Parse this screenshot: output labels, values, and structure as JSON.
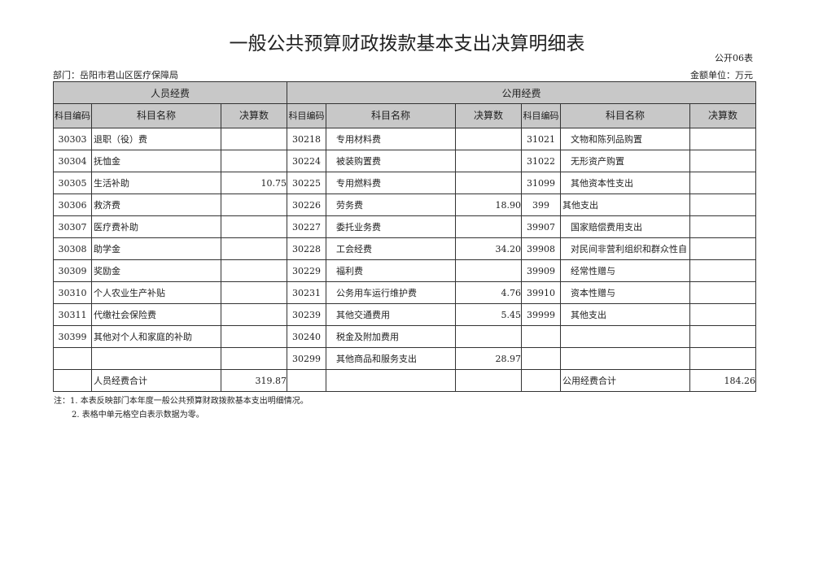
{
  "title": "一般公共预算财政拨款基本支出决算明细表",
  "form_no": "公开06表",
  "department": "部门：岳阳市君山区医疗保障局",
  "unit": "金额单位：万元",
  "groups": {
    "personnel": "人员经费",
    "public": "公用经费"
  },
  "headers": {
    "code": "科目编码",
    "name": "科目名称",
    "amount": "决算数"
  },
  "rows": [
    {
      "a": [
        "30303",
        "退职（役）费",
        ""
      ],
      "b": [
        "30218",
        "专用材料费",
        ""
      ],
      "c": [
        "31021",
        "文物和陈列品购置",
        ""
      ]
    },
    {
      "a": [
        "30304",
        "抚恤金",
        ""
      ],
      "b": [
        "30224",
        "被装购置费",
        ""
      ],
      "c": [
        "31022",
        "无形资产购置",
        ""
      ]
    },
    {
      "a": [
        "30305",
        "生活补助",
        "10.75"
      ],
      "b": [
        "30225",
        "专用燃料费",
        ""
      ],
      "c": [
        "31099",
        "其他资本性支出",
        ""
      ]
    },
    {
      "a": [
        "30306",
        "救济费",
        ""
      ],
      "b": [
        "30226",
        "劳务费",
        "18.90"
      ],
      "c": [
        "399",
        "其他支出",
        ""
      ]
    },
    {
      "a": [
        "30307",
        "医疗费补助",
        ""
      ],
      "b": [
        "30227",
        "委托业务费",
        ""
      ],
      "c": [
        "39907",
        "国家赔偿费用支出",
        ""
      ]
    },
    {
      "a": [
        "30308",
        "助学金",
        ""
      ],
      "b": [
        "30228",
        "工会经费",
        "34.20"
      ],
      "c": [
        "39908",
        "对民间非营利组织和群众性自",
        ""
      ]
    },
    {
      "a": [
        "30309",
        "奖励金",
        ""
      ],
      "b": [
        "30229",
        "福利费",
        ""
      ],
      "c": [
        "39909",
        "经常性赠与",
        ""
      ]
    },
    {
      "a": [
        "30310",
        "个人农业生产补贴",
        ""
      ],
      "b": [
        "30231",
        "公务用车运行维护费",
        "4.76"
      ],
      "c": [
        "39910",
        "资本性赠与",
        ""
      ]
    },
    {
      "a": [
        "30311",
        "代缴社会保险费",
        ""
      ],
      "b": [
        "30239",
        "其他交通费用",
        "5.45"
      ],
      "c": [
        "39999",
        "其他支出",
        ""
      ]
    },
    {
      "a": [
        "30399",
        "其他对个人和家庭的补助",
        ""
      ],
      "b": [
        "30240",
        "税金及附加费用",
        ""
      ],
      "c": [
        "",
        "",
        ""
      ]
    },
    {
      "a": [
        "",
        "",
        ""
      ],
      "b": [
        "30299",
        "其他商品和服务支出",
        "28.97"
      ],
      "c": [
        "",
        "",
        ""
      ]
    }
  ],
  "totals": {
    "personnel_label": "人员经费合计",
    "personnel_value": "319.87",
    "public_label": "公用经费合计",
    "public_value": "184.26"
  },
  "notes": [
    "注：1. 本表反映部门本年度一般公共预算财政拨款基本支出明细情况。",
    "2. 表格中单元格空白表示数据为零。"
  ]
}
